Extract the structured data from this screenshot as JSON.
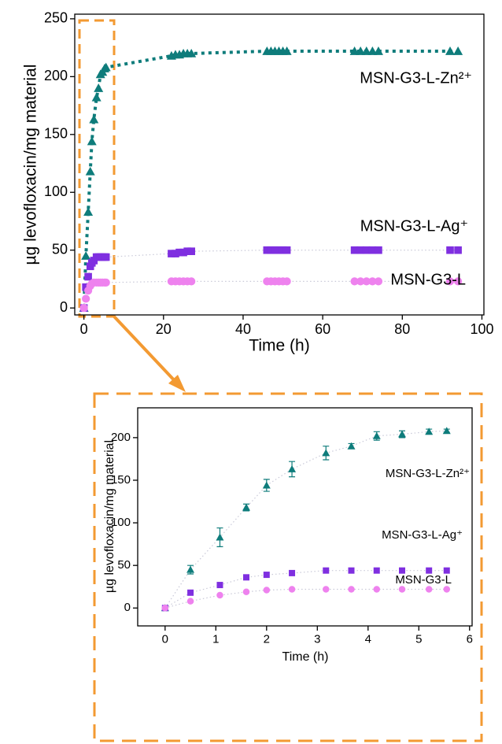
{
  "chart_data": [
    {
      "type": "scatter",
      "xlabel": "Time (h)",
      "ylabel": "µg levofloxacin/mg material",
      "xlim": [
        -2.3,
        100.5
      ],
      "ylim": [
        -6,
        254
      ],
      "xticks": [
        0,
        20,
        40,
        60,
        80,
        100
      ],
      "yticks": [
        0,
        50,
        100,
        150,
        200,
        250
      ],
      "x": [
        0,
        0.5,
        1.08,
        1.6,
        2,
        2.5,
        3.17,
        3.67,
        4.17,
        4.67,
        5.2,
        5.55,
        22,
        23,
        24,
        25,
        26,
        27,
        46,
        47,
        48,
        49,
        50,
        51,
        68,
        69.5,
        71,
        72.5,
        74,
        92,
        94
      ],
      "series": [
        {
          "name": "MSN-G3-L-Zn²⁺",
          "color": "#0e7c7b",
          "marker": "triangle",
          "line": "dashed",
          "values": [
            0,
            45,
            83,
            118,
            144,
            163,
            182,
            190,
            202,
            204,
            207,
            208,
            218,
            219,
            219,
            220,
            220,
            220,
            222,
            222,
            222,
            222,
            222,
            222,
            222,
            222,
            222,
            222,
            222,
            222,
            222
          ]
        },
        {
          "name": "MSN-G3-L-Ag⁺",
          "color": "#7f2fe0",
          "marker": "square",
          "line": "dotted",
          "values": [
            0,
            18,
            27,
            36,
            39,
            41,
            44,
            44,
            44,
            44,
            44,
            44,
            47,
            47,
            48,
            48,
            49,
            49,
            50,
            50,
            50,
            50,
            50,
            50,
            50,
            50,
            50,
            50,
            50,
            50,
            50
          ]
        },
        {
          "name": "MSN-G3-L",
          "color": "#ee82ee",
          "marker": "circle",
          "line": "dotted",
          "values": [
            0,
            8,
            15,
            19,
            21,
            22,
            22,
            22,
            22,
            22,
            22,
            22,
            23,
            23,
            23,
            23,
            23,
            23,
            23,
            23,
            23,
            23,
            23,
            23,
            23,
            23,
            23,
            23,
            23,
            23,
            23
          ]
        }
      ]
    },
    {
      "type": "scatter",
      "xlabel": "Time (h)",
      "ylabel": "µg levofloxacin/mg material",
      "xlim": [
        -0.54,
        6.05
      ],
      "ylim": [
        -21,
        235
      ],
      "xticks": [
        0,
        1,
        2,
        3,
        4,
        5,
        6
      ],
      "yticks": [
        0,
        50,
        100,
        150,
        200
      ],
      "x": [
        0,
        0.5,
        1.08,
        1.6,
        2,
        2.5,
        3.17,
        3.67,
        4.17,
        4.67,
        5.2,
        5.55
      ],
      "series": [
        {
          "name": "MSN-G3-L-Zn²⁺",
          "color": "#0e7c7b",
          "marker": "triangle",
          "line": "dotted",
          "values": [
            0,
            45,
            83,
            118,
            144,
            163,
            182,
            190,
            202,
            204,
            207,
            208
          ],
          "errors": [
            0,
            5,
            11,
            4,
            7,
            9,
            8,
            3,
            5,
            4,
            3,
            2
          ]
        },
        {
          "name": "MSN-G3-L-Ag⁺",
          "color": "#7f2fe0",
          "marker": "square",
          "line": "dotted",
          "values": [
            0,
            18,
            27,
            36,
            39,
            41,
            44,
            44,
            44,
            44,
            44,
            44
          ]
        },
        {
          "name": "MSN-G3-L",
          "color": "#ee82ee",
          "marker": "circle",
          "line": "dotted",
          "values": [
            0,
            8,
            15,
            19,
            21,
            22,
            22,
            22,
            22,
            22,
            22,
            22
          ]
        }
      ]
    }
  ]
}
